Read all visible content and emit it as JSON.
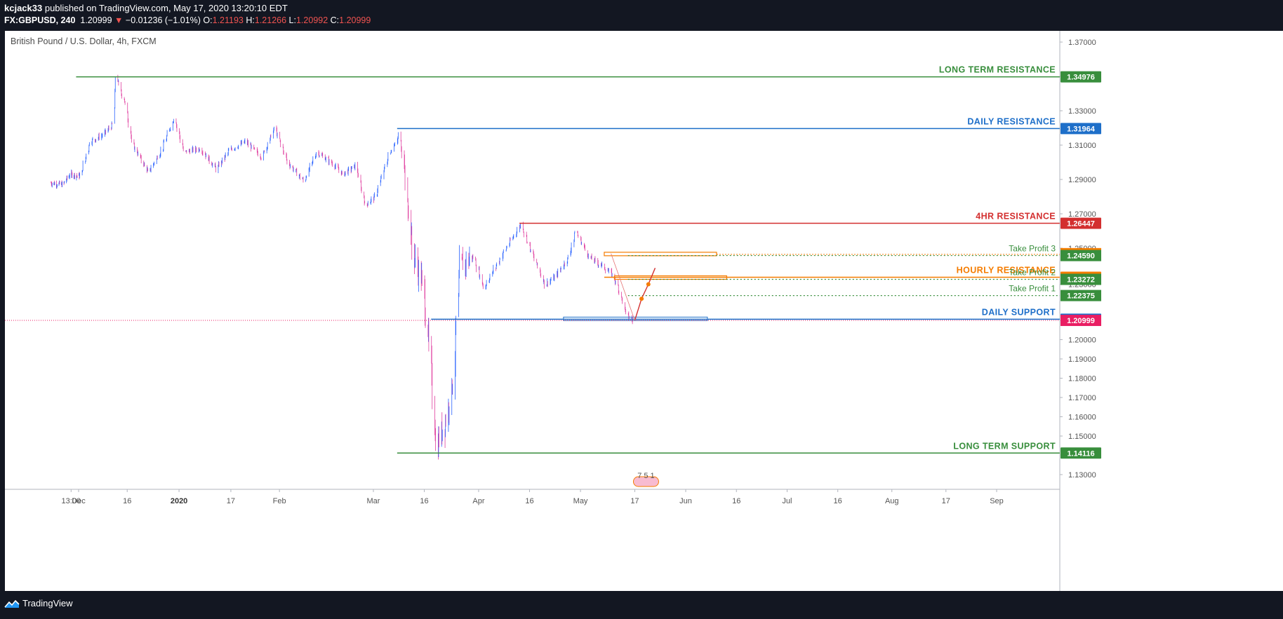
{
  "header": {
    "author": "kcjack33",
    "published": " published on TradingView.com, May 17, 2020 13:20:10 EDT",
    "symbol": "FX:GBPUSD, 240",
    "last": "1.20999",
    "change_arrow": "▼",
    "change": "−0.01236 (−1.01%)",
    "open_label": "O:",
    "open": "1.21193",
    "high_label": "H:",
    "high": "1.21266",
    "low_label": "L:",
    "low": "1.20992",
    "close_label": "C:",
    "close": "1.20999"
  },
  "footer": {
    "brand": "TradingView",
    "logo_icon": "tradingview-logo-icon"
  },
  "chart_data": {
    "type": "candlestick",
    "title": "British Pound / U.S. Dollar, 4h, FXCM",
    "ylim": [
      1.12,
      1.375
    ],
    "y_ticks": [
      "1.37000",
      "1.35000",
      "1.33000",
      "1.31000",
      "1.29000",
      "1.27000",
      "1.25000",
      "1.23000",
      "1.21000",
      "1.20000",
      "1.19000",
      "1.18000",
      "1.17000",
      "1.16000",
      "1.15000",
      "1.13000"
    ],
    "x_ticks": [
      {
        "label": "13:00",
        "date": "2019-11-28",
        "bold": false
      },
      {
        "label": "Dec",
        "date": "2019-12-01",
        "bold": false
      },
      {
        "label": "16",
        "date": "2019-12-16",
        "bold": false
      },
      {
        "label": "2020",
        "date": "2020-01-01",
        "bold": true
      },
      {
        "label": "17",
        "date": "2020-01-17",
        "bold": false
      },
      {
        "label": "Feb",
        "date": "2020-02-01",
        "bold": false
      },
      {
        "label": "Mar",
        "date": "2020-03-01",
        "bold": false
      },
      {
        "label": "16",
        "date": "2020-03-16",
        "bold": false
      },
      {
        "label": "Apr",
        "date": "2020-04-01",
        "bold": false
      },
      {
        "label": "16",
        "date": "2020-04-16",
        "bold": false
      },
      {
        "label": "May",
        "date": "2020-05-01",
        "bold": false
      },
      {
        "label": "17",
        "date": "2020-05-17",
        "bold": false
      },
      {
        "label": "Jun",
        "date": "2020-06-01",
        "bold": false
      },
      {
        "label": "16",
        "date": "2020-06-16",
        "bold": false
      },
      {
        "label": "Jul",
        "date": "2020-07-01",
        "bold": false
      },
      {
        "label": "16",
        "date": "2020-07-16",
        "bold": false
      },
      {
        "label": "Aug",
        "date": "2020-08-01",
        "bold": false
      },
      {
        "label": "17",
        "date": "2020-08-17",
        "bold": false
      },
      {
        "label": "Sep",
        "date": "2020-09-01",
        "bold": false
      }
    ],
    "price_path": [
      [
        "2019-11-20",
        1.288
      ],
      [
        "2019-11-25",
        1.287
      ],
      [
        "2019-11-28",
        1.293
      ],
      [
        "2019-12-02",
        1.292
      ],
      [
        "2019-12-05",
        1.312
      ],
      [
        "2019-12-09",
        1.316
      ],
      [
        "2019-12-12",
        1.322
      ],
      [
        "2019-12-13",
        1.35
      ],
      [
        "2019-12-16",
        1.333
      ],
      [
        "2019-12-18",
        1.311
      ],
      [
        "2019-12-23",
        1.294
      ],
      [
        "2019-12-27",
        1.307
      ],
      [
        "2019-12-31",
        1.326
      ],
      [
        "2020-01-03",
        1.306
      ],
      [
        "2020-01-08",
        1.308
      ],
      [
        "2020-01-13",
        1.296
      ],
      [
        "2020-01-17",
        1.307
      ],
      [
        "2020-01-22",
        1.312
      ],
      [
        "2020-01-27",
        1.303
      ],
      [
        "2020-01-31",
        1.32
      ],
      [
        "2020-02-04",
        1.3
      ],
      [
        "2020-02-09",
        1.289
      ],
      [
        "2020-02-13",
        1.306
      ],
      [
        "2020-02-18",
        1.299
      ],
      [
        "2020-02-21",
        1.293
      ],
      [
        "2020-02-25",
        1.298
      ],
      [
        "2020-02-28",
        1.275
      ],
      [
        "2020-03-02",
        1.28
      ],
      [
        "2020-03-06",
        1.304
      ],
      [
        "2020-03-09",
        1.316
      ],
      [
        "2020-03-11",
        1.29
      ],
      [
        "2020-03-13",
        1.248
      ],
      [
        "2020-03-16",
        1.23
      ],
      [
        "2020-03-18",
        1.195
      ],
      [
        "2020-03-20",
        1.144
      ],
      [
        "2020-03-23",
        1.16
      ],
      [
        "2020-03-25",
        1.18
      ],
      [
        "2020-03-27",
        1.24
      ],
      [
        "2020-03-31",
        1.245
      ],
      [
        "2020-04-03",
        1.228
      ],
      [
        "2020-04-08",
        1.245
      ],
      [
        "2020-04-14",
        1.264
      ],
      [
        "2020-04-17",
        1.248
      ],
      [
        "2020-04-21",
        1.23
      ],
      [
        "2020-04-24",
        1.234
      ],
      [
        "2020-04-28",
        1.245
      ],
      [
        "2020-04-30",
        1.26
      ],
      [
        "2020-05-04",
        1.245
      ],
      [
        "2020-05-08",
        1.24
      ],
      [
        "2020-05-11",
        1.235
      ],
      [
        "2020-05-13",
        1.226
      ],
      [
        "2020-05-15",
        1.213
      ],
      [
        "2020-05-17",
        1.21
      ]
    ],
    "levels": [
      {
        "name": "LONG TERM RESISTANCE",
        "value": "1.34976",
        "y": 1.34976,
        "color": "#388e3c",
        "from": "2019-11-30"
      },
      {
        "name": "DAILY RESISTANCE",
        "value": "1.31964",
        "y": 1.31964,
        "color": "#1e6fc9",
        "from": "2020-03-08"
      },
      {
        "name": "4HR RESISTANCE",
        "value": "1.26447",
        "y": 1.26447,
        "color": "#d32f2f",
        "from": "2020-04-13"
      },
      {
        "name": "HOURLY RESISTANCE",
        "value": "1.23390",
        "y": 1.2339,
        "color": "#f57c00",
        "from": "2020-05-08"
      },
      {
        "name": "DAILY SUPPORT",
        "value": "1.21065",
        "y": 1.21065,
        "color": "#1e6fc9",
        "from": "2020-03-18"
      },
      {
        "name": "LONG TERM SUPPORT",
        "value": "1.14116",
        "y": 1.14116,
        "color": "#388e3c",
        "from": "2020-03-08"
      }
    ],
    "take_profits": [
      {
        "name": "Take Profit 3",
        "value": "1.24590",
        "y": 1.2459,
        "color": "#388e3c"
      },
      {
        "name": "Take Profit 2",
        "value": "1.23272",
        "y": 1.23272,
        "color": "#388e3c"
      },
      {
        "name": "Take Profit 1",
        "value": "1.22375",
        "y": 1.22375,
        "color": "#388e3c"
      }
    ],
    "orange_zone_value": "1.24696",
    "orange_zone_y": 1.24696,
    "current_price": {
      "value": "1.20999",
      "y": 1.20999,
      "color": "#e91e63"
    },
    "projection": [
      [
        "2020-05-17",
        1.21
      ],
      [
        "2020-05-19",
        1.222
      ],
      [
        "2020-05-21",
        1.23
      ],
      [
        "2020-05-23",
        1.239
      ]
    ],
    "overlay_text": "7 5 1"
  }
}
